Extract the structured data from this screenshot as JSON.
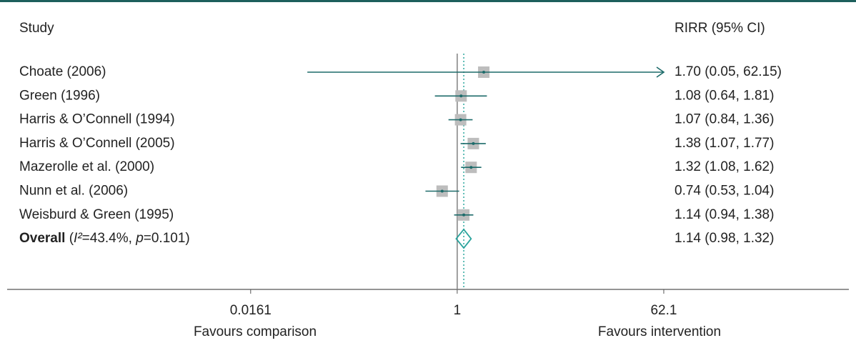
{
  "chart_data": {
    "type": "forest",
    "header": {
      "study": "Study",
      "effect": "RIRR (95% CI)"
    },
    "log_scale": true,
    "xlim": [
      0.0138,
      72.7
    ],
    "xticks": [
      0.0161,
      1,
      62.1
    ],
    "null_value": 1,
    "xlabels": {
      "left": "Favours comparison",
      "right": "Favours intervention"
    },
    "color": "#1d6b6a",
    "square_color": "#bdbdbd",
    "overall_color": "#2aa39c",
    "rows": [
      {
        "study": "Choate (2006)",
        "estimate": 1.7,
        "lower": 0.05,
        "upper": 62.15,
        "label": "1.70 (0.05, 62.15)"
      },
      {
        "study": "Green (1996)",
        "estimate": 1.08,
        "lower": 0.64,
        "upper": 1.81,
        "label": "1.08 (0.64, 1.81)"
      },
      {
        "study": "Harris & O’Connell (1994)",
        "estimate": 1.07,
        "lower": 0.84,
        "upper": 1.36,
        "label": "1.07 (0.84, 1.36)"
      },
      {
        "study": "Harris & O’Connell (2005)",
        "estimate": 1.38,
        "lower": 1.07,
        "upper": 1.77,
        "label": "1.38 (1.07, 1.77)"
      },
      {
        "study": "Mazerolle et al. (2000)",
        "estimate": 1.32,
        "lower": 1.08,
        "upper": 1.62,
        "label": "1.32 (1.08, 1.62)"
      },
      {
        "study": "Nunn et al. (2006)",
        "estimate": 0.74,
        "lower": 0.53,
        "upper": 1.04,
        "label": "0.74 (0.53, 1.04)"
      },
      {
        "study": "Weisburd & Green (1995)",
        "estimate": 1.14,
        "lower": 0.94,
        "upper": 1.38,
        "label": "1.14 (0.94, 1.38)"
      }
    ],
    "overall": {
      "label_parts": [
        "Overall",
        " (",
        "I²",
        "=43.4%, ",
        "p",
        "=0.101)"
      ],
      "estimate": 1.14,
      "lower": 0.98,
      "upper": 1.32,
      "label": "1.14 (0.98, 1.32)"
    }
  }
}
